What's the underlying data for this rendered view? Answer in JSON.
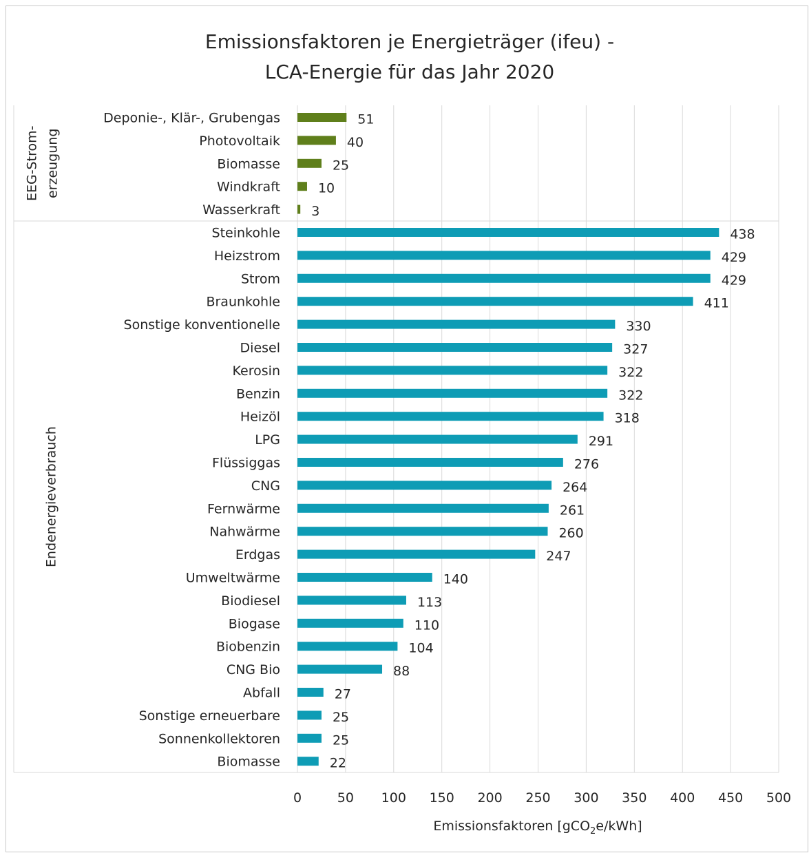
{
  "chart_data": {
    "type": "bar",
    "orientation": "horizontal",
    "title": [
      "Emissionsfaktoren je Energieträger (ifeu) -",
      "LCA-Energie für das Jahr 2020"
    ],
    "xlabel": "Emissionsfaktoren [gCO2e/kWh]",
    "xlabel_parts": {
      "before": "Emissionsfaktoren [gCO",
      "sub": "2",
      "after": "e/kWh]"
    },
    "xlim": [
      0,
      500
    ],
    "xticks": [
      0,
      50,
      100,
      150,
      200,
      250,
      300,
      350,
      400,
      450,
      500
    ],
    "grid": true,
    "colors": {
      "EEG-Strom-erzeugung": "#5f7f1b",
      "Endenergieverbrauch": "#0e9cb5"
    },
    "groups": [
      {
        "name": "EEG-Strom-erzeugung",
        "label_lines": [
          "EEG-Strom-",
          "erzeugung"
        ],
        "categories": [
          "Deponie-, Klär-, Grubengas",
          "Photovoltaik",
          "Biomasse",
          "Windkraft",
          "Wasserkraft"
        ],
        "values": [
          51,
          40,
          25,
          10,
          3
        ]
      },
      {
        "name": "Endenergieverbrauch",
        "label_lines": [
          "Endenergieverbrauch"
        ],
        "categories": [
          "Steinkohle",
          "Heizstrom",
          "Strom",
          "Braunkohle",
          "Sonstige konventionelle",
          "Diesel",
          "Kerosin",
          "Benzin",
          "Heizöl",
          "LPG",
          "Flüssiggas",
          "CNG",
          "Fernwärme",
          "Nahwärme",
          "Erdgas",
          "Umweltwärme",
          "Biodiesel",
          "Biogase",
          "Biobenzin",
          "CNG Bio",
          "Abfall",
          "Sonstige erneuerbare",
          "Sonnenkollektoren",
          "Biomasse"
        ],
        "values": [
          438,
          429,
          429,
          411,
          330,
          327,
          322,
          322,
          318,
          291,
          276,
          264,
          261,
          260,
          247,
          140,
          113,
          110,
          104,
          88,
          27,
          25,
          25,
          22
        ]
      }
    ]
  }
}
